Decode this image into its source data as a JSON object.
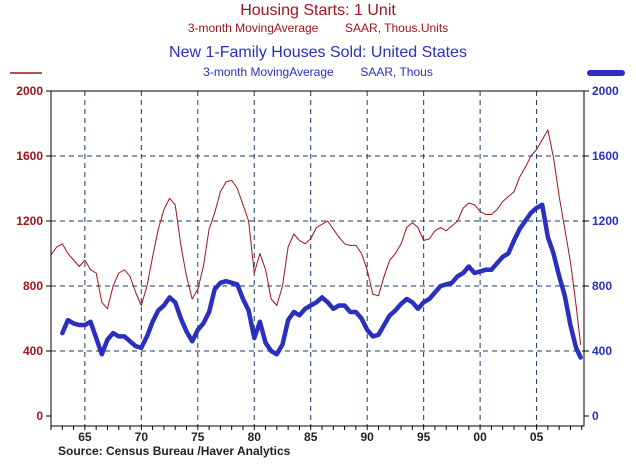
{
  "titles": {
    "series1_title": "Housing Starts: 1 Unit",
    "series1_subtitle": "3-month MovingAverage        SAAR, Thous.Units",
    "series2_title": "New 1-Family Houses Sold: United States",
    "series2_subtitle": "3-month MovingAverage        SAAR, Thous"
  },
  "source": "Source:  Census Bureau /Haver Analytics",
  "colors": {
    "series1": "#a0141e",
    "series2": "#2b2fc0",
    "grid": "#1a3a6a"
  },
  "chart_data": {
    "type": "line",
    "xlim": [
      1962,
      2009.2
    ],
    "ylim": [
      0,
      2000
    ],
    "x_ticks": [
      1965,
      1970,
      1975,
      1980,
      1985,
      1990,
      1995,
      2000,
      2005
    ],
    "x_tick_labels": [
      "65",
      "70",
      "75",
      "80",
      "85",
      "90",
      "95",
      "00",
      "05"
    ],
    "y_ticks_left": [
      0,
      400,
      800,
      1200,
      1600,
      2000
    ],
    "y_ticks_right": [
      0,
      400,
      800,
      1200,
      1600,
      2000
    ],
    "grid": true,
    "series": [
      {
        "name": "Housing Starts: 1 Unit",
        "axis": "left",
        "x": [
          1962.0,
          1962.5,
          1963.0,
          1963.5,
          1964.0,
          1964.5,
          1965.0,
          1965.5,
          1966.0,
          1966.5,
          1967.0,
          1967.5,
          1968.0,
          1968.5,
          1969.0,
          1969.5,
          1970.0,
          1970.5,
          1971.0,
          1971.5,
          1972.0,
          1972.5,
          1973.0,
          1973.5,
          1974.0,
          1974.5,
          1975.0,
          1975.5,
          1976.0,
          1976.5,
          1977.0,
          1977.5,
          1978.0,
          1978.5,
          1979.0,
          1979.5,
          1980.0,
          1980.5,
          1981.0,
          1981.5,
          1982.0,
          1982.5,
          1983.0,
          1983.5,
          1984.0,
          1984.5,
          1985.0,
          1985.5,
          1986.0,
          1986.5,
          1987.0,
          1987.5,
          1988.0,
          1988.5,
          1989.0,
          1989.5,
          1990.0,
          1990.5,
          1991.0,
          1991.5,
          1992.0,
          1992.5,
          1993.0,
          1993.5,
          1994.0,
          1994.5,
          1995.0,
          1995.5,
          1996.0,
          1996.5,
          1997.0,
          1997.5,
          1998.0,
          1998.5,
          1999.0,
          1999.5,
          2000.0,
          2000.5,
          2001.0,
          2001.5,
          2002.0,
          2002.5,
          2003.0,
          2003.5,
          2004.0,
          2004.5,
          2005.0,
          2005.5,
          2006.0,
          2006.5,
          2007.0,
          2007.5,
          2008.0,
          2008.5,
          2008.9
        ],
        "values": [
          990,
          1040,
          1060,
          1000,
          960,
          920,
          960,
          900,
          880,
          700,
          660,
          800,
          880,
          900,
          860,
          760,
          680,
          800,
          980,
          1150,
          1270,
          1340,
          1300,
          1050,
          860,
          720,
          780,
          920,
          1150,
          1250,
          1380,
          1440,
          1450,
          1400,
          1300,
          1200,
          880,
          1000,
          900,
          720,
          680,
          800,
          1040,
          1120,
          1080,
          1060,
          1090,
          1160,
          1180,
          1200,
          1150,
          1100,
          1060,
          1050,
          1050,
          1000,
          900,
          750,
          740,
          860,
          960,
          1000,
          1060,
          1160,
          1190,
          1160,
          1080,
          1090,
          1140,
          1160,
          1140,
          1170,
          1200,
          1280,
          1310,
          1300,
          1260,
          1240,
          1240,
          1270,
          1320,
          1350,
          1380,
          1470,
          1530,
          1600,
          1640,
          1700,
          1760,
          1590,
          1350,
          1150,
          950,
          680,
          440
        ]
      },
      {
        "name": "New 1-Family Houses Sold: United States",
        "axis": "right",
        "x": [
          1963.0,
          1963.5,
          1964.0,
          1964.5,
          1965.0,
          1965.5,
          1966.0,
          1966.5,
          1967.0,
          1967.5,
          1968.0,
          1968.5,
          1969.0,
          1969.5,
          1970.0,
          1970.5,
          1971.0,
          1971.5,
          1972.0,
          1972.5,
          1973.0,
          1973.5,
          1974.0,
          1974.5,
          1975.0,
          1975.5,
          1976.0,
          1976.5,
          1977.0,
          1977.5,
          1978.0,
          1978.5,
          1979.0,
          1979.5,
          1980.0,
          1980.5,
          1981.0,
          1981.5,
          1982.0,
          1982.5,
          1983.0,
          1983.5,
          1984.0,
          1984.5,
          1985.0,
          1985.5,
          1986.0,
          1986.5,
          1987.0,
          1987.5,
          1988.0,
          1988.5,
          1989.0,
          1989.5,
          1990.0,
          1990.5,
          1991.0,
          1991.5,
          1992.0,
          1992.5,
          1993.0,
          1993.5,
          1994.0,
          1994.5,
          1995.0,
          1995.5,
          1996.0,
          1996.5,
          1997.0,
          1997.5,
          1998.0,
          1998.5,
          1999.0,
          1999.5,
          2000.0,
          2000.5,
          2001.0,
          2001.5,
          2002.0,
          2002.5,
          2003.0,
          2003.5,
          2004.0,
          2004.5,
          2005.0,
          2005.5,
          2006.0,
          2006.5,
          2007.0,
          2007.5,
          2008.0,
          2008.5,
          2008.9
        ],
        "values": [
          510,
          590,
          570,
          560,
          560,
          580,
          480,
          380,
          470,
          510,
          490,
          490,
          460,
          430,
          420,
          490,
          580,
          650,
          680,
          730,
          700,
          600,
          520,
          460,
          530,
          570,
          640,
          780,
          820,
          830,
          820,
          810,
          720,
          650,
          480,
          580,
          450,
          400,
          380,
          440,
          590,
          640,
          620,
          660,
          680,
          700,
          730,
          700,
          660,
          680,
          680,
          640,
          640,
          600,
          530,
          490,
          500,
          560,
          620,
          650,
          690,
          720,
          700,
          660,
          700,
          720,
          760,
          800,
          810,
          820,
          860,
          880,
          920,
          880,
          890,
          900,
          900,
          940,
          980,
          1000,
          1080,
          1150,
          1200,
          1250,
          1280,
          1300,
          1100,
          1000,
          860,
          740,
          560,
          420,
          360
        ]
      }
    ]
  }
}
